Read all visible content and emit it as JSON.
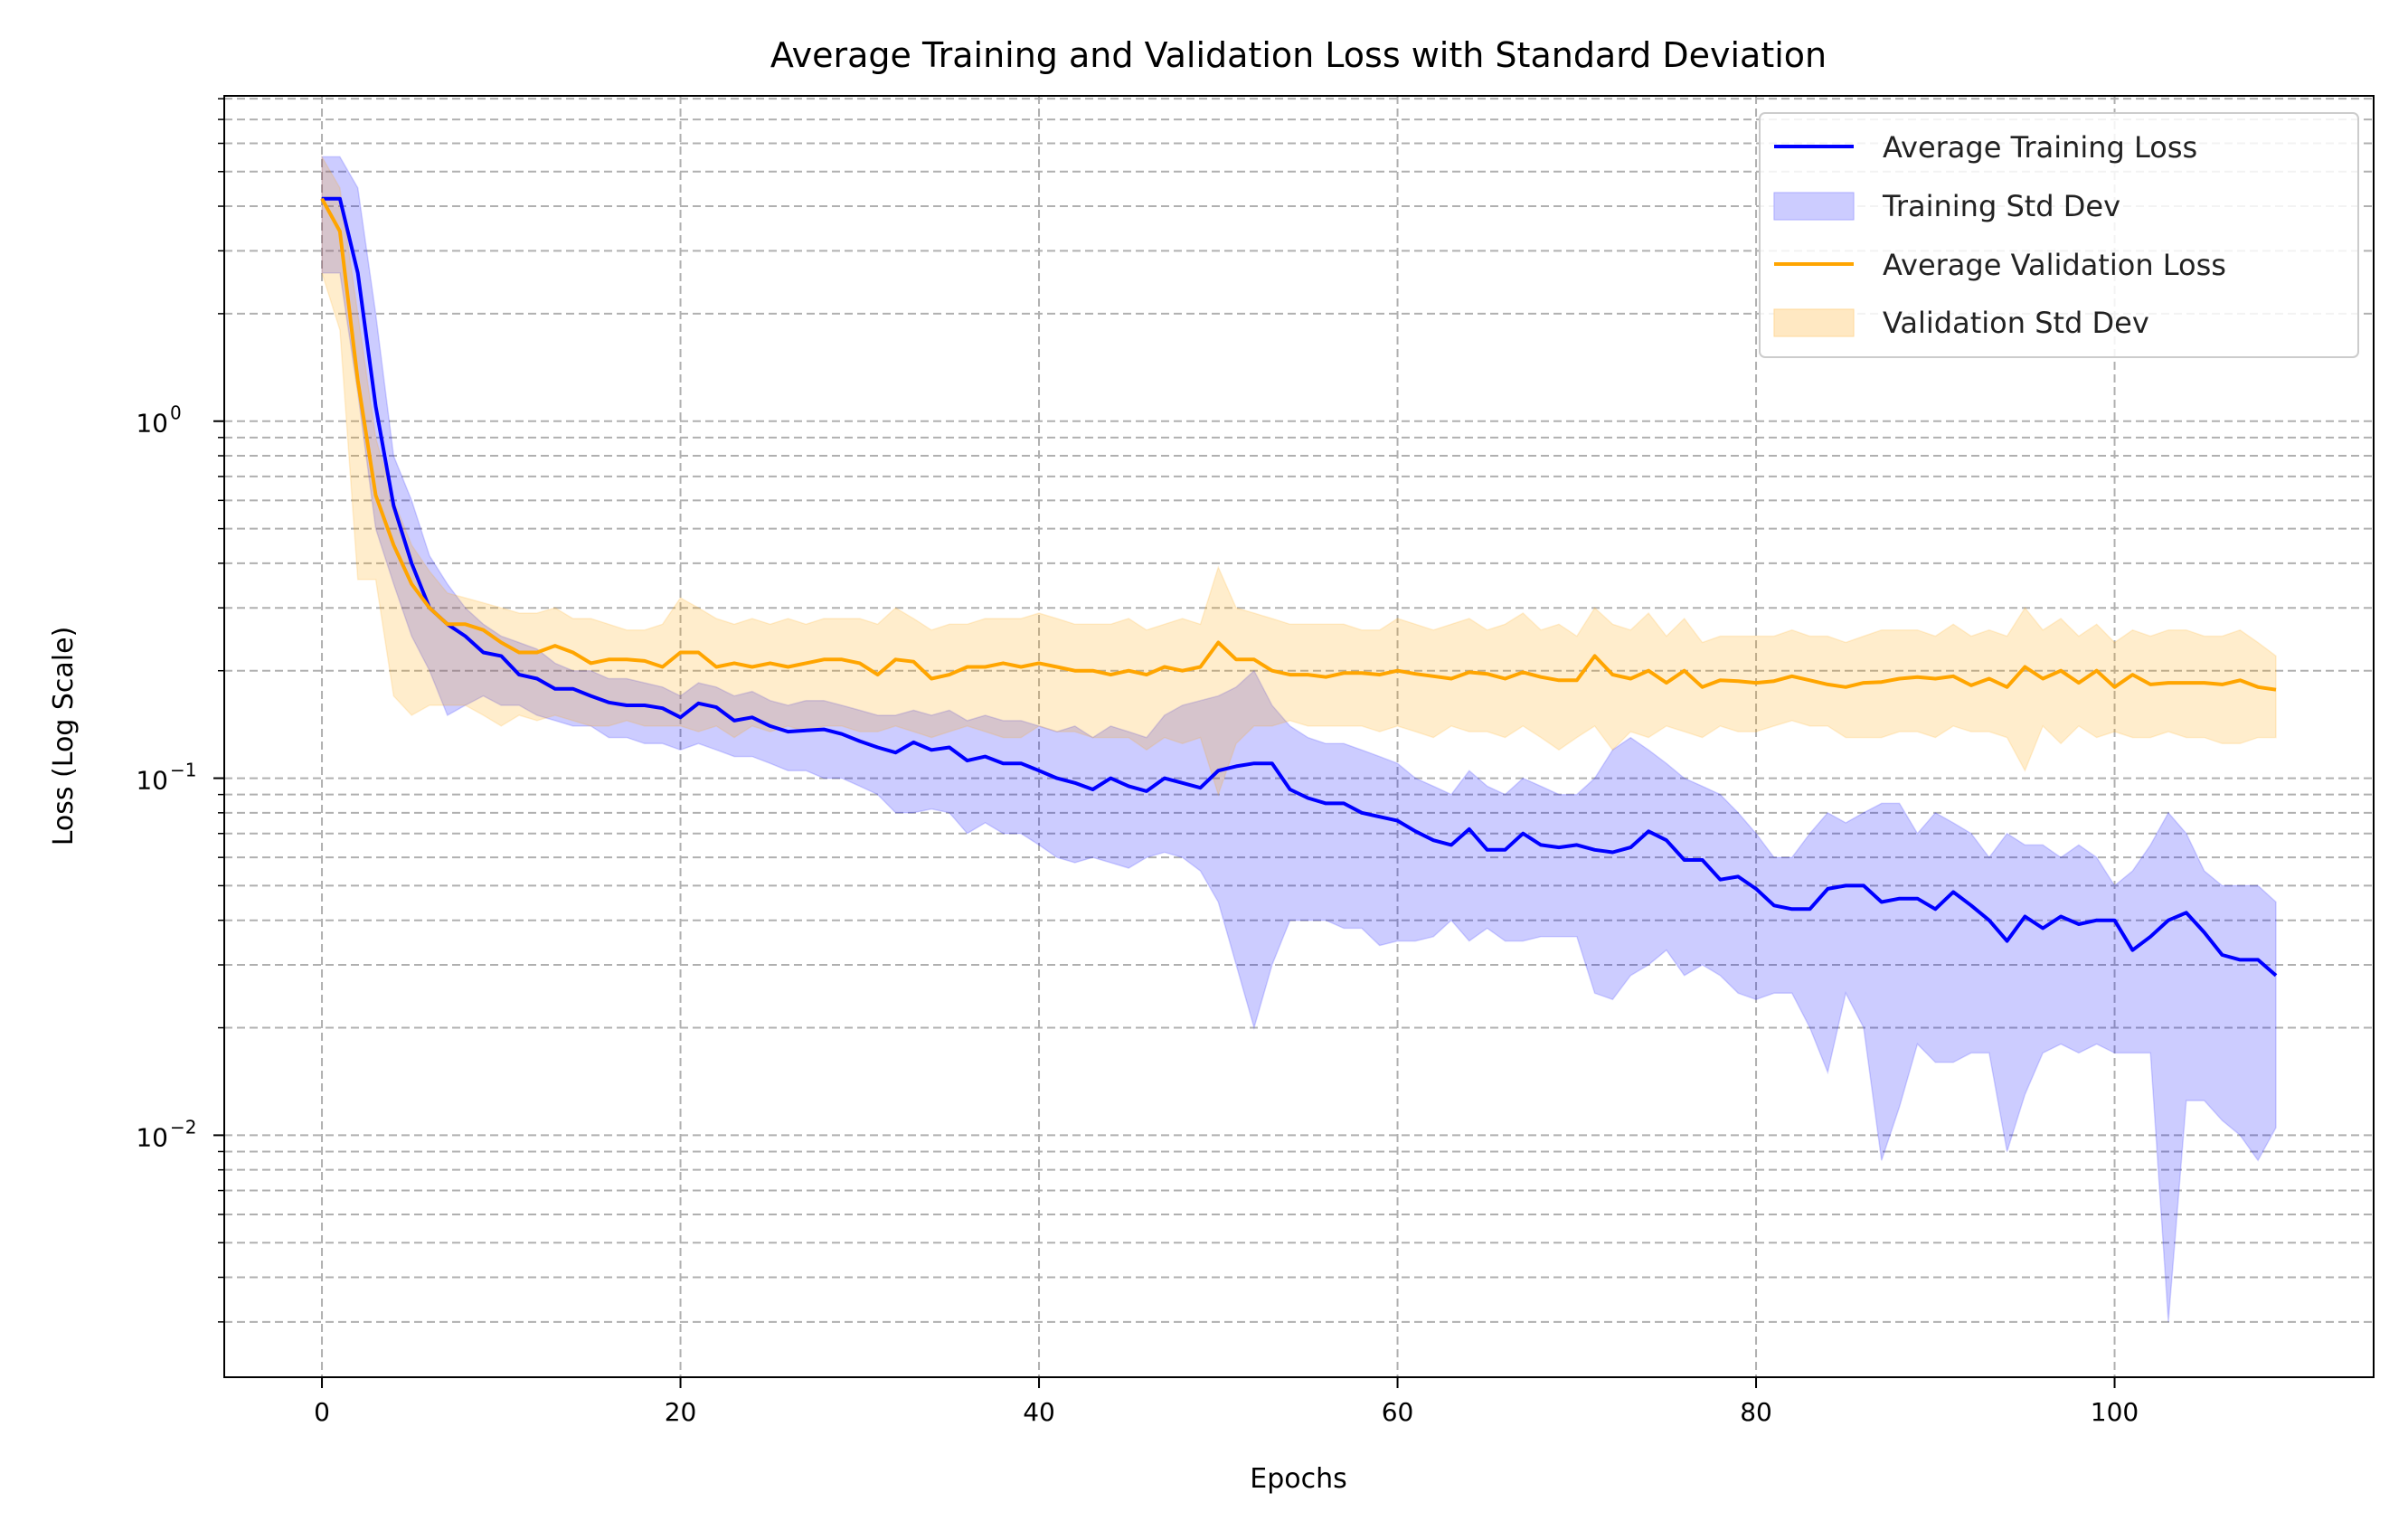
{
  "chart_data": {
    "type": "line",
    "title": "Average Training and Validation Loss with Standard Deviation",
    "xlabel": "Epochs",
    "ylabel": "Loss (Log Scale)",
    "yscale": "log",
    "xlim": [
      -5.45,
      114.45
    ],
    "ylim": [
      0.0021,
      8.15
    ],
    "xticks": [
      0,
      20,
      40,
      60,
      80,
      100
    ],
    "xtick_labels": [
      "0",
      "20",
      "40",
      "60",
      "80",
      "100"
    ],
    "yticks": [
      1,
      0.1,
      0.01
    ],
    "ytick_labels": [
      {
        "base": "10",
        "exp": "0"
      },
      {
        "base": "10",
        "exp": "−1"
      },
      {
        "base": "10",
        "exp": "−2"
      }
    ],
    "grid": true,
    "legend_position": "top-right",
    "legend": [
      "Average Training Loss",
      "Training Std Dev",
      "Average Validation Loss",
      "Validation Std Dev"
    ],
    "colors": {
      "train": "#0000ff",
      "train_band": "#ccccff",
      "val": "#ffa500",
      "val_band": "#ffe8c2"
    },
    "series": [
      {
        "name": "Average Training Loss",
        "values": [
          4.2,
          4.2,
          2.6,
          1.1,
          0.58,
          0.4,
          0.3,
          0.27,
          0.25,
          0.225,
          0.22,
          0.195,
          0.19,
          0.178,
          0.178,
          0.17,
          0.163,
          0.16,
          0.16,
          0.157,
          0.148,
          0.162,
          0.158,
          0.145,
          0.148,
          0.14,
          0.135,
          0.136,
          0.137,
          0.133,
          0.127,
          0.122,
          0.118,
          0.126,
          0.12,
          0.122,
          0.112,
          0.115,
          0.11,
          0.11,
          0.105,
          0.1,
          0.097,
          0.093,
          0.1,
          0.095,
          0.092,
          0.1,
          0.097,
          0.094,
          0.105,
          0.108,
          0.11,
          0.11,
          0.093,
          0.088,
          0.085,
          0.085,
          0.08,
          0.078,
          0.076,
          0.071,
          0.067,
          0.065,
          0.072,
          0.063,
          0.063,
          0.07,
          0.065,
          0.064,
          0.065,
          0.063,
          0.062,
          0.064,
          0.071,
          0.067,
          0.059,
          0.059,
          0.052,
          0.053,
          0.049,
          0.044,
          0.043,
          0.043,
          0.049,
          0.05,
          0.05,
          0.045,
          0.046,
          0.046,
          0.043,
          0.048,
          0.044,
          0.04,
          0.035,
          0.041,
          0.038,
          0.041,
          0.039,
          0.04,
          0.04,
          0.033,
          0.036,
          0.04,
          0.042,
          0.037,
          0.032,
          0.031,
          0.031,
          0.028
        ],
        "upper": [
          5.5,
          5.5,
          4.5,
          2.0,
          0.8,
          0.6,
          0.42,
          0.35,
          0.3,
          0.27,
          0.25,
          0.24,
          0.23,
          0.21,
          0.2,
          0.2,
          0.19,
          0.19,
          0.185,
          0.18,
          0.17,
          0.185,
          0.18,
          0.17,
          0.175,
          0.165,
          0.16,
          0.165,
          0.165,
          0.16,
          0.155,
          0.15,
          0.15,
          0.155,
          0.15,
          0.155,
          0.145,
          0.15,
          0.145,
          0.145,
          0.14,
          0.135,
          0.14,
          0.13,
          0.14,
          0.135,
          0.13,
          0.15,
          0.16,
          0.165,
          0.17,
          0.18,
          0.2,
          0.16,
          0.14,
          0.13,
          0.125,
          0.125,
          0.12,
          0.115,
          0.11,
          0.1,
          0.095,
          0.09,
          0.105,
          0.095,
          0.09,
          0.1,
          0.095,
          0.09,
          0.09,
          0.1,
          0.12,
          0.13,
          0.12,
          0.11,
          0.1,
          0.095,
          0.09,
          0.08,
          0.07,
          0.06,
          0.06,
          0.07,
          0.08,
          0.075,
          0.08,
          0.085,
          0.085,
          0.07,
          0.08,
          0.075,
          0.07,
          0.06,
          0.07,
          0.065,
          0.065,
          0.06,
          0.065,
          0.06,
          0.05,
          0.055,
          0.065,
          0.08,
          0.07,
          0.055,
          0.05,
          0.05,
          0.05,
          0.045
        ],
        "lower": [
          2.6,
          2.6,
          1.2,
          0.5,
          0.35,
          0.25,
          0.2,
          0.15,
          0.16,
          0.17,
          0.16,
          0.16,
          0.15,
          0.145,
          0.14,
          0.14,
          0.13,
          0.13,
          0.125,
          0.125,
          0.12,
          0.125,
          0.12,
          0.115,
          0.115,
          0.11,
          0.105,
          0.105,
          0.1,
          0.1,
          0.095,
          0.09,
          0.08,
          0.08,
          0.082,
          0.08,
          0.07,
          0.075,
          0.07,
          0.07,
          0.065,
          0.06,
          0.058,
          0.06,
          0.058,
          0.056,
          0.06,
          0.062,
          0.06,
          0.055,
          0.045,
          0.03,
          0.02,
          0.03,
          0.04,
          0.04,
          0.04,
          0.038,
          0.038,
          0.034,
          0.035,
          0.035,
          0.036,
          0.04,
          0.035,
          0.038,
          0.035,
          0.035,
          0.036,
          0.036,
          0.036,
          0.025,
          0.024,
          0.028,
          0.03,
          0.033,
          0.028,
          0.03,
          0.028,
          0.025,
          0.024,
          0.025,
          0.025,
          0.02,
          0.015,
          0.025,
          0.02,
          0.0085,
          0.012,
          0.018,
          0.016,
          0.016,
          0.017,
          0.017,
          0.009,
          0.013,
          0.017,
          0.018,
          0.017,
          0.018,
          0.017,
          0.017,
          0.017,
          0.003,
          0.0125,
          0.0125,
          0.011,
          0.01,
          0.0085,
          0.0105
        ]
      },
      {
        "name": "Average Validation Loss",
        "values": [
          4.2,
          3.4,
          1.3,
          0.62,
          0.45,
          0.35,
          0.3,
          0.27,
          0.27,
          0.26,
          0.24,
          0.225,
          0.225,
          0.235,
          0.225,
          0.21,
          0.215,
          0.215,
          0.213,
          0.205,
          0.225,
          0.225,
          0.205,
          0.21,
          0.205,
          0.21,
          0.205,
          0.21,
          0.215,
          0.215,
          0.21,
          0.195,
          0.215,
          0.212,
          0.19,
          0.195,
          0.205,
          0.205,
          0.21,
          0.205,
          0.21,
          0.205,
          0.2,
          0.2,
          0.195,
          0.2,
          0.195,
          0.205,
          0.2,
          0.205,
          0.24,
          0.215,
          0.215,
          0.2,
          0.195,
          0.195,
          0.192,
          0.197,
          0.197,
          0.195,
          0.2,
          0.196,
          0.193,
          0.19,
          0.198,
          0.196,
          0.19,
          0.198,
          0.192,
          0.188,
          0.188,
          0.22,
          0.195,
          0.19,
          0.2,
          0.185,
          0.2,
          0.18,
          0.188,
          0.187,
          0.185,
          0.187,
          0.193,
          0.188,
          0.183,
          0.18,
          0.185,
          0.186,
          0.19,
          0.192,
          0.19,
          0.193,
          0.182,
          0.19,
          0.18,
          0.205,
          0.19,
          0.2,
          0.185,
          0.2,
          0.18,
          0.195,
          0.183,
          0.185,
          0.185,
          0.185,
          0.183,
          0.188,
          0.18,
          0.177
        ],
        "upper": [
          5.5,
          4.5,
          2.0,
          0.9,
          0.6,
          0.45,
          0.38,
          0.33,
          0.32,
          0.31,
          0.3,
          0.29,
          0.29,
          0.3,
          0.28,
          0.28,
          0.27,
          0.26,
          0.26,
          0.27,
          0.32,
          0.3,
          0.28,
          0.27,
          0.28,
          0.27,
          0.28,
          0.27,
          0.28,
          0.28,
          0.28,
          0.27,
          0.3,
          0.28,
          0.26,
          0.27,
          0.27,
          0.28,
          0.28,
          0.28,
          0.29,
          0.28,
          0.27,
          0.27,
          0.27,
          0.28,
          0.26,
          0.27,
          0.28,
          0.27,
          0.39,
          0.3,
          0.29,
          0.28,
          0.27,
          0.27,
          0.27,
          0.27,
          0.26,
          0.26,
          0.28,
          0.27,
          0.26,
          0.27,
          0.28,
          0.26,
          0.27,
          0.29,
          0.26,
          0.27,
          0.25,
          0.3,
          0.27,
          0.26,
          0.29,
          0.25,
          0.28,
          0.24,
          0.25,
          0.25,
          0.25,
          0.25,
          0.26,
          0.25,
          0.25,
          0.24,
          0.25,
          0.26,
          0.26,
          0.26,
          0.25,
          0.27,
          0.25,
          0.26,
          0.25,
          0.3,
          0.26,
          0.28,
          0.25,
          0.27,
          0.24,
          0.26,
          0.25,
          0.26,
          0.26,
          0.25,
          0.25,
          0.26,
          0.24,
          0.22
        ],
        "lower": [
          2.6,
          1.8,
          0.36,
          0.36,
          0.17,
          0.15,
          0.16,
          0.16,
          0.16,
          0.15,
          0.14,
          0.15,
          0.145,
          0.15,
          0.145,
          0.14,
          0.14,
          0.145,
          0.14,
          0.14,
          0.14,
          0.135,
          0.14,
          0.13,
          0.14,
          0.135,
          0.14,
          0.135,
          0.14,
          0.14,
          0.135,
          0.135,
          0.14,
          0.135,
          0.13,
          0.135,
          0.14,
          0.135,
          0.13,
          0.13,
          0.14,
          0.135,
          0.135,
          0.13,
          0.13,
          0.13,
          0.12,
          0.13,
          0.125,
          0.13,
          0.09,
          0.125,
          0.14,
          0.14,
          0.145,
          0.14,
          0.14,
          0.14,
          0.14,
          0.135,
          0.14,
          0.135,
          0.13,
          0.14,
          0.135,
          0.135,
          0.13,
          0.14,
          0.13,
          0.12,
          0.13,
          0.14,
          0.12,
          0.135,
          0.13,
          0.14,
          0.135,
          0.13,
          0.14,
          0.135,
          0.135,
          0.14,
          0.145,
          0.14,
          0.14,
          0.13,
          0.13,
          0.13,
          0.135,
          0.135,
          0.13,
          0.14,
          0.135,
          0.135,
          0.13,
          0.105,
          0.14,
          0.125,
          0.14,
          0.13,
          0.135,
          0.13,
          0.13,
          0.135,
          0.13,
          0.13,
          0.125,
          0.125,
          0.13,
          0.13
        ]
      }
    ]
  }
}
